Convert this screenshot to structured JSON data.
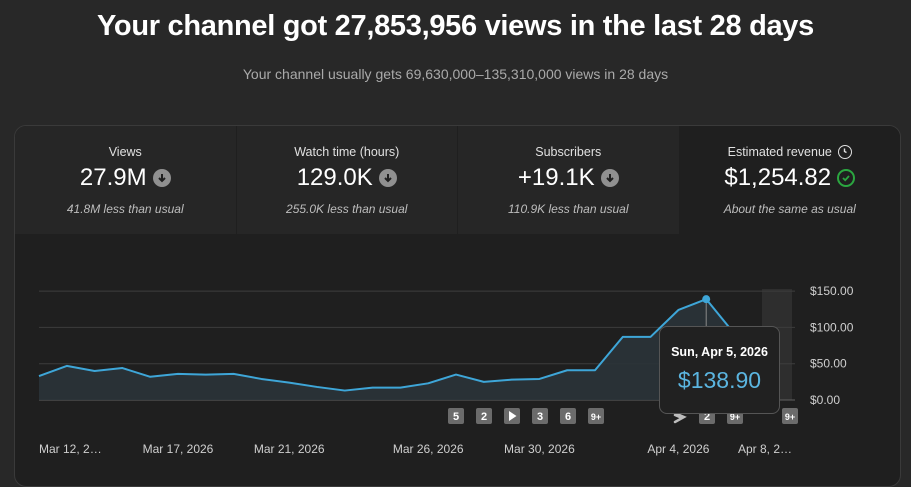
{
  "headline": "Your channel got 27,853,956 views in the last 28 days",
  "subline": "Your channel usually gets 69,630,000–135,310,000 views in 28 days",
  "metrics": [
    {
      "label": "Views",
      "value": "27.9M",
      "note": "41.8M less than usual",
      "status_icon": "arrow-down-icon"
    },
    {
      "label": "Watch time (hours)",
      "value": "129.0K",
      "note": "255.0K less than usual",
      "status_icon": "arrow-down-icon"
    },
    {
      "label": "Subscribers",
      "value": "+19.1K",
      "note": "110.9K less than usual",
      "status_icon": "arrow-down-icon"
    },
    {
      "label": "Estimated revenue",
      "value": "$1,254.82",
      "note": "About the same as usual",
      "status_icon": "check-icon",
      "label_icon": "clock-icon"
    }
  ],
  "tooltip": {
    "date": "Sun, Apr 5, 2026",
    "value": "$138.90"
  },
  "colors": {
    "line": "#3ea6d8",
    "accent_text": "#5bb5e0",
    "check": "#2ba640",
    "background": "#282828",
    "panel": "#1f1f1f"
  },
  "chart_data": {
    "type": "area",
    "x": [
      "Mar 12",
      "Mar 13",
      "Mar 14",
      "Mar 15",
      "Mar 16",
      "Mar 17",
      "Mar 18",
      "Mar 19",
      "Mar 20",
      "Mar 21",
      "Mar 22",
      "Mar 23",
      "Mar 24",
      "Mar 25",
      "Mar 26",
      "Mar 27",
      "Mar 28",
      "Mar 29",
      "Mar 30",
      "Mar 31",
      "Apr 1",
      "Apr 2",
      "Apr 3",
      "Apr 4",
      "Apr 5",
      "Apr 6",
      "Apr 7"
    ],
    "values": [
      33,
      47,
      40,
      44,
      32,
      36,
      35,
      36,
      29,
      24,
      18,
      13,
      17,
      17,
      23,
      35,
      25,
      28,
      29,
      41,
      41,
      87,
      87,
      124,
      138.9,
      92,
      70
    ],
    "ylim": [
      0,
      150
    ],
    "yticks": [
      "$0.00",
      "$50.00",
      "$100.00",
      "$150.00"
    ],
    "xtick_labels": [
      "Mar 12, 2…",
      "Mar 17, 2026",
      "Mar 21, 2026",
      "Mar 26, 2026",
      "Mar 30, 2026",
      "Apr 4, 2026",
      "Apr 8, 2…"
    ],
    "highlight_index": 24,
    "grid": true,
    "markers": [
      "5",
      "2",
      "play",
      "3",
      "6",
      "9+",
      "shorts",
      "2",
      "9+",
      "9+"
    ]
  }
}
